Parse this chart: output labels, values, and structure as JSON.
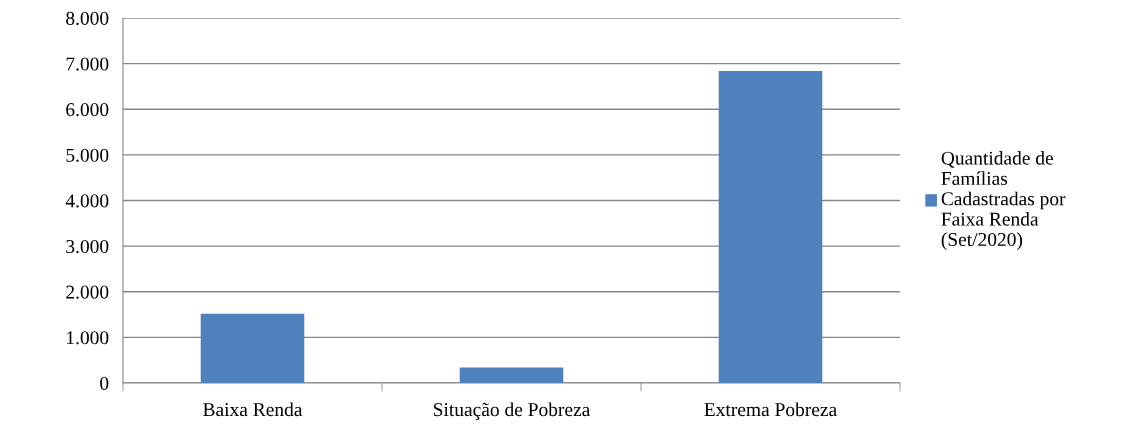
{
  "chart_data": {
    "type": "bar",
    "categories": [
      "Baixa Renda",
      "Situação de Pobreza",
      "Extrema Pobreza"
    ],
    "series": [
      {
        "name": "Quantidade de Famílias Cadastradas por Faixa Renda (Set/2020)",
        "color": "#4f81bd",
        "values": [
          1520,
          340,
          6840
        ]
      }
    ],
    "ylim": [
      0,
      8000
    ],
    "yticks": [
      {
        "value": 0,
        "label": "0"
      },
      {
        "value": 1000,
        "label": "1.000"
      },
      {
        "value": 2000,
        "label": "2.000"
      },
      {
        "value": 3000,
        "label": "3.000"
      },
      {
        "value": 4000,
        "label": "4.000"
      },
      {
        "value": 5000,
        "label": "5.000"
      },
      {
        "value": 6000,
        "label": "6.000"
      },
      {
        "value": 7000,
        "label": "7.000"
      },
      {
        "value": 8000,
        "label": "8.000"
      }
    ],
    "grid": "y",
    "legend": "right"
  }
}
